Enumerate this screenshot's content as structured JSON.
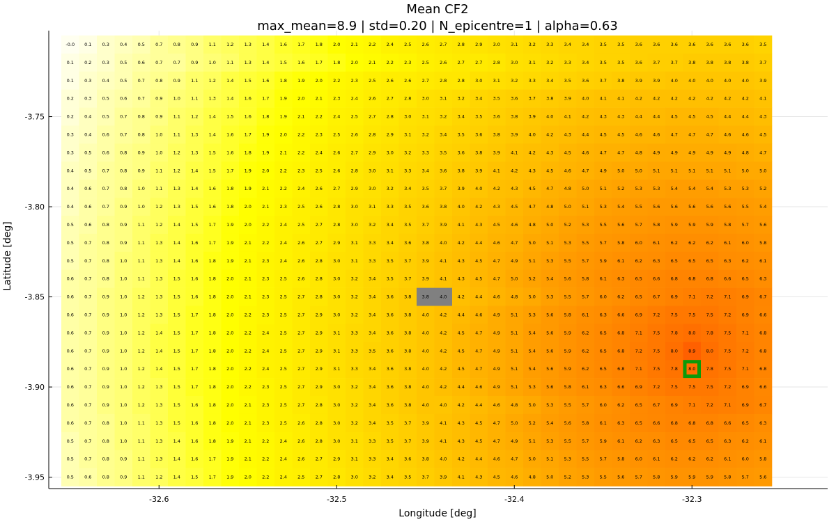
{
  "chart_data": {
    "type": "heatmap",
    "title": "Mean CF2",
    "subtitle": "max_mean=8.9 | std=0.20 | N_epicentre=1 | alpha=0.63",
    "xlabel": "Longitude [deg]",
    "ylabel": "Latitude [deg]",
    "x_ticks": [
      {
        "value": -32.6,
        "label": "-32.6"
      },
      {
        "value": -32.5,
        "label": "-32.5"
      },
      {
        "value": -32.4,
        "label": "-32.4"
      },
      {
        "value": -32.3,
        "label": "-32.3"
      }
    ],
    "y_ticks": [
      {
        "value": -3.75,
        "label": "-3.75"
      },
      {
        "value": -3.8,
        "label": "-3.80"
      },
      {
        "value": -3.85,
        "label": "-3.85"
      },
      {
        "value": -3.9,
        "label": "-3.90"
      },
      {
        "value": -3.95,
        "label": "-3.95"
      }
    ],
    "x_start": -32.65,
    "x_step": 0.01,
    "y_start": -3.71,
    "y_step": -0.01,
    "grid": true,
    "colormap": [
      "#fffff0",
      "#ffff00",
      "#ff9a00",
      "#ff6000"
    ],
    "color_range": [
      0,
      8.9
    ],
    "highlight_cell": {
      "row": 18,
      "col": 35,
      "color": "#0a9a0a"
    },
    "masked_cells": [
      {
        "row": 14,
        "col": 20,
        "color": "#808080"
      },
      {
        "row": 14,
        "col": 21,
        "color": "#808080"
      }
    ],
    "rows": [
      [
        -0.0,
        0.1,
        0.3,
        0.4,
        0.5,
        0.7,
        0.8,
        0.9,
        1.1,
        1.2,
        1.3,
        1.4,
        1.6,
        1.7,
        1.8,
        2.0,
        2.1,
        2.2,
        2.4,
        2.5,
        2.6,
        2.7,
        2.8,
        2.9,
        3.0,
        3.1,
        3.2,
        3.3,
        3.4,
        3.4,
        3.5,
        3.5,
        3.6,
        3.6,
        3.6,
        3.6,
        3.6,
        3.6,
        3.6,
        3.5
      ],
      [
        0.1,
        0.2,
        0.3,
        0.5,
        0.6,
        0.7,
        0.7,
        0.9,
        1.0,
        1.1,
        1.3,
        1.4,
        1.5,
        1.6,
        1.7,
        1.8,
        2.0,
        2.1,
        2.2,
        2.3,
        2.5,
        2.6,
        2.7,
        2.7,
        2.8,
        3.0,
        3.1,
        3.2,
        3.3,
        3.4,
        3.5,
        3.5,
        3.6,
        3.7,
        3.7,
        3.8,
        3.8,
        3.8,
        3.8,
        3.7
      ],
      [
        0.1,
        0.3,
        0.4,
        0.5,
        0.7,
        0.8,
        0.9,
        1.1,
        1.2,
        1.4,
        1.5,
        1.6,
        1.8,
        1.9,
        2.0,
        2.2,
        2.3,
        2.5,
        2.6,
        2.6,
        2.7,
        2.8,
        2.8,
        3.0,
        3.1,
        3.2,
        3.3,
        3.4,
        3.5,
        3.6,
        3.7,
        3.8,
        3.9,
        3.9,
        4.0,
        4.0,
        4.0,
        4.0,
        4.0,
        3.9
      ],
      [
        0.2,
        0.3,
        0.5,
        0.6,
        0.7,
        0.9,
        1.0,
        1.1,
        1.3,
        1.4,
        1.6,
        1.7,
        1.9,
        2.0,
        2.1,
        2.3,
        2.4,
        2.6,
        2.7,
        2.8,
        3.0,
        3.1,
        3.2,
        3.4,
        3.5,
        3.6,
        3.7,
        3.8,
        3.9,
        4.0,
        4.1,
        4.1,
        4.2,
        4.2,
        4.2,
        4.2,
        4.2,
        4.2,
        4.2,
        4.1
      ],
      [
        0.2,
        0.4,
        0.5,
        0.7,
        0.8,
        0.9,
        1.1,
        1.2,
        1.4,
        1.5,
        1.6,
        1.8,
        1.9,
        2.1,
        2.2,
        2.4,
        2.5,
        2.7,
        2.8,
        3.0,
        3.1,
        3.2,
        3.4,
        3.5,
        3.6,
        3.8,
        3.9,
        4.0,
        4.1,
        4.2,
        4.3,
        4.3,
        4.4,
        4.4,
        4.5,
        4.5,
        4.5,
        4.4,
        4.4,
        4.3
      ],
      [
        0.3,
        0.4,
        0.6,
        0.7,
        0.8,
        1.0,
        1.1,
        1.3,
        1.4,
        1.6,
        1.7,
        1.9,
        2.0,
        2.2,
        2.3,
        2.5,
        2.6,
        2.8,
        2.9,
        3.1,
        3.2,
        3.4,
        3.5,
        3.6,
        3.8,
        3.9,
        4.0,
        4.2,
        4.3,
        4.4,
        4.5,
        4.5,
        4.6,
        4.6,
        4.7,
        4.7,
        4.7,
        4.6,
        4.6,
        4.5
      ],
      [
        0.3,
        0.5,
        0.6,
        0.8,
        0.9,
        1.0,
        1.2,
        1.3,
        1.5,
        1.6,
        1.8,
        1.9,
        2.1,
        2.2,
        2.4,
        2.6,
        2.7,
        2.9,
        3.0,
        3.2,
        3.3,
        3.5,
        3.6,
        3.8,
        3.9,
        4.1,
        4.2,
        4.3,
        4.5,
        4.6,
        4.7,
        4.7,
        4.8,
        4.9,
        4.9,
        4.9,
        4.9,
        4.9,
        4.8,
        4.7
      ],
      [
        0.4,
        0.5,
        0.7,
        0.8,
        0.9,
        1.1,
        1.2,
        1.4,
        1.5,
        1.7,
        1.9,
        2.0,
        2.2,
        2.3,
        2.5,
        2.6,
        2.8,
        3.0,
        3.1,
        3.3,
        3.4,
        3.6,
        3.8,
        3.9,
        4.1,
        4.2,
        4.3,
        4.5,
        4.6,
        4.7,
        4.9,
        5.0,
        5.0,
        5.1,
        5.1,
        5.1,
        5.1,
        5.1,
        5.0,
        5.0
      ],
      [
        0.4,
        0.6,
        0.7,
        0.8,
        1.0,
        1.1,
        1.3,
        1.4,
        1.6,
        1.8,
        1.9,
        2.1,
        2.2,
        2.4,
        2.6,
        2.7,
        2.9,
        3.0,
        3.2,
        3.4,
        3.5,
        3.7,
        3.9,
        4.0,
        4.2,
        4.3,
        4.5,
        4.7,
        4.8,
        5.0,
        5.1,
        5.2,
        5.3,
        5.3,
        5.4,
        5.4,
        5.4,
        5.3,
        5.3,
        5.2
      ],
      [
        0.4,
        0.6,
        0.7,
        0.9,
        1.0,
        1.2,
        1.3,
        1.5,
        1.6,
        1.8,
        2.0,
        2.1,
        2.3,
        2.5,
        2.6,
        2.8,
        3.0,
        3.1,
        3.3,
        3.5,
        3.6,
        3.8,
        4.0,
        4.2,
        4.3,
        4.5,
        4.7,
        4.8,
        5.0,
        5.1,
        5.3,
        5.4,
        5.5,
        5.6,
        5.6,
        5.6,
        5.6,
        5.6,
        5.5,
        5.4
      ],
      [
        0.5,
        0.6,
        0.8,
        0.9,
        1.1,
        1.2,
        1.4,
        1.5,
        1.7,
        1.9,
        2.0,
        2.2,
        2.4,
        2.5,
        2.7,
        2.8,
        3.0,
        3.2,
        3.4,
        3.5,
        3.7,
        3.9,
        4.1,
        4.3,
        4.5,
        4.6,
        4.8,
        5.0,
        5.2,
        5.3,
        5.5,
        5.6,
        5.7,
        5.8,
        5.9,
        5.9,
        5.9,
        5.8,
        5.7,
        5.6
      ],
      [
        0.5,
        0.7,
        0.8,
        0.9,
        1.1,
        1.3,
        1.4,
        1.6,
        1.7,
        1.9,
        2.1,
        2.2,
        2.4,
        2.6,
        2.7,
        2.9,
        3.1,
        3.3,
        3.4,
        3.6,
        3.8,
        4.0,
        4.2,
        4.4,
        4.6,
        4.7,
        5.0,
        5.1,
        5.3,
        5.5,
        5.7,
        5.8,
        6.0,
        6.1,
        6.2,
        6.2,
        6.2,
        6.1,
        6.0,
        5.8
      ],
      [
        0.5,
        0.7,
        0.8,
        1.0,
        1.1,
        1.3,
        1.4,
        1.6,
        1.8,
        1.9,
        2.1,
        2.3,
        2.4,
        2.6,
        2.8,
        3.0,
        3.1,
        3.3,
        3.5,
        3.7,
        3.9,
        4.1,
        4.3,
        4.5,
        4.7,
        4.9,
        5.1,
        5.3,
        5.5,
        5.7,
        5.9,
        6.1,
        6.2,
        6.3,
        6.5,
        6.5,
        6.5,
        6.3,
        6.2,
        6.1
      ],
      [
        0.6,
        0.7,
        0.8,
        1.0,
        1.1,
        1.3,
        1.5,
        1.6,
        1.8,
        2.0,
        2.1,
        2.3,
        2.5,
        2.6,
        2.8,
        3.0,
        3.2,
        3.4,
        3.5,
        3.7,
        3.9,
        4.1,
        4.3,
        4.5,
        4.7,
        5.0,
        5.2,
        5.4,
        5.6,
        5.8,
        6.1,
        6.3,
        6.5,
        6.6,
        6.8,
        6.8,
        6.8,
        6.6,
        6.5,
        6.3
      ],
      [
        0.6,
        0.7,
        0.9,
        1.0,
        1.2,
        1.3,
        1.5,
        1.6,
        1.8,
        2.0,
        2.1,
        2.3,
        2.5,
        2.7,
        2.8,
        3.0,
        3.2,
        3.4,
        3.6,
        3.8,
        3.8,
        4.0,
        4.2,
        4.4,
        4.6,
        4.8,
        5.0,
        5.3,
        5.5,
        5.7,
        6.0,
        6.2,
        6.5,
        6.7,
        6.9,
        7.1,
        7.2,
        7.1,
        6.9,
        6.7
      ],
      [
        0.6,
        0.7,
        0.9,
        1.0,
        1.2,
        1.3,
        1.5,
        1.7,
        1.8,
        2.0,
        2.2,
        2.3,
        2.5,
        2.7,
        2.9,
        3.0,
        3.2,
        3.4,
        3.6,
        3.8,
        4.0,
        4.2,
        4.4,
        4.6,
        4.9,
        5.1,
        5.3,
        5.6,
        5.8,
        6.1,
        6.3,
        6.6,
        6.9,
        7.2,
        7.5,
        7.5,
        7.5,
        7.2,
        6.9,
        6.6
      ],
      [
        0.6,
        0.7,
        0.9,
        1.0,
        1.2,
        1.4,
        1.5,
        1.7,
        1.8,
        2.0,
        2.2,
        2.4,
        2.5,
        2.7,
        2.9,
        3.1,
        3.3,
        3.4,
        3.6,
        3.8,
        4.0,
        4.2,
        4.5,
        4.7,
        4.9,
        5.1,
        5.4,
        5.6,
        5.9,
        6.2,
        6.5,
        6.8,
        7.1,
        7.5,
        7.8,
        8.0,
        7.8,
        7.5,
        7.1,
        6.8
      ],
      [
        0.6,
        0.7,
        0.9,
        1.0,
        1.2,
        1.4,
        1.5,
        1.7,
        1.8,
        2.0,
        2.2,
        2.4,
        2.5,
        2.7,
        2.9,
        3.1,
        3.3,
        3.5,
        3.6,
        3.8,
        4.0,
        4.2,
        4.5,
        4.7,
        4.9,
        5.1,
        5.4,
        5.6,
        5.9,
        6.2,
        6.5,
        6.8,
        7.2,
        7.5,
        8.0,
        8.9,
        8.0,
        7.5,
        7.2,
        6.8
      ],
      [
        0.6,
        0.7,
        0.9,
        1.0,
        1.2,
        1.4,
        1.5,
        1.7,
        1.8,
        2.0,
        2.2,
        2.4,
        2.5,
        2.7,
        2.9,
        3.1,
        3.3,
        3.4,
        3.6,
        3.8,
        4.0,
        4.2,
        4.5,
        4.7,
        4.9,
        5.1,
        5.4,
        5.6,
        5.9,
        6.2,
        6.5,
        6.8,
        7.1,
        7.5,
        7.8,
        8.0,
        7.8,
        7.5,
        7.1,
        6.8
      ],
      [
        0.6,
        0.7,
        0.9,
        1.0,
        1.2,
        1.3,
        1.5,
        1.7,
        1.8,
        2.0,
        2.2,
        2.3,
        2.5,
        2.7,
        2.9,
        3.0,
        3.2,
        3.4,
        3.6,
        3.8,
        4.0,
        4.2,
        4.4,
        4.6,
        4.9,
        5.1,
        5.3,
        5.6,
        5.8,
        6.1,
        6.3,
        6.6,
        6.9,
        7.2,
        7.5,
        7.5,
        7.5,
        7.2,
        6.9,
        6.6
      ],
      [
        0.6,
        0.7,
        0.9,
        1.0,
        1.2,
        1.3,
        1.5,
        1.6,
        1.8,
        2.0,
        2.1,
        2.3,
        2.5,
        2.7,
        2.8,
        3.0,
        3.2,
        3.4,
        3.6,
        3.8,
        4.0,
        4.0,
        4.2,
        4.4,
        4.6,
        4.8,
        5.0,
        5.3,
        5.5,
        5.7,
        6.0,
        6.2,
        6.5,
        6.7,
        6.9,
        7.1,
        7.2,
        7.1,
        6.9,
        6.7
      ],
      [
        0.6,
        0.7,
        0.8,
        1.0,
        1.1,
        1.3,
        1.5,
        1.6,
        1.8,
        2.0,
        2.1,
        2.3,
        2.5,
        2.6,
        2.8,
        3.0,
        3.2,
        3.4,
        3.5,
        3.7,
        3.9,
        4.1,
        4.3,
        4.5,
        4.7,
        5.0,
        5.2,
        5.4,
        5.6,
        5.8,
        6.1,
        6.3,
        6.5,
        6.6,
        6.8,
        6.8,
        6.8,
        6.6,
        6.5,
        6.3
      ],
      [
        0.5,
        0.7,
        0.8,
        1.0,
        1.1,
        1.3,
        1.4,
        1.6,
        1.8,
        1.9,
        2.1,
        2.2,
        2.4,
        2.6,
        2.8,
        3.0,
        3.1,
        3.3,
        3.5,
        3.7,
        3.9,
        4.1,
        4.3,
        4.5,
        4.7,
        4.9,
        5.1,
        5.3,
        5.5,
        5.7,
        5.9,
        6.1,
        6.2,
        6.3,
        6.5,
        6.5,
        6.5,
        6.3,
        6.2,
        6.1
      ],
      [
        0.5,
        0.7,
        0.8,
        0.9,
        1.1,
        1.3,
        1.4,
        1.6,
        1.7,
        1.9,
        2.1,
        2.2,
        2.4,
        2.6,
        2.7,
        2.9,
        3.1,
        3.3,
        3.4,
        3.6,
        3.8,
        4.0,
        4.2,
        4.4,
        4.6,
        4.7,
        5.0,
        5.1,
        5.3,
        5.5,
        5.7,
        5.8,
        6.0,
        6.1,
        6.2,
        6.2,
        6.2,
        6.1,
        6.0,
        5.8
      ],
      [
        0.5,
        0.6,
        0.8,
        0.9,
        1.1,
        1.2,
        1.4,
        1.5,
        1.7,
        1.9,
        2.0,
        2.2,
        2.4,
        2.5,
        2.7,
        2.8,
        3.0,
        3.2,
        3.4,
        3.5,
        3.7,
        3.9,
        4.1,
        4.3,
        4.5,
        4.6,
        4.8,
        5.0,
        5.2,
        5.3,
        5.5,
        5.6,
        5.7,
        5.8,
        5.9,
        5.9,
        5.9,
        5.8,
        5.7,
        5.6
      ]
    ]
  }
}
